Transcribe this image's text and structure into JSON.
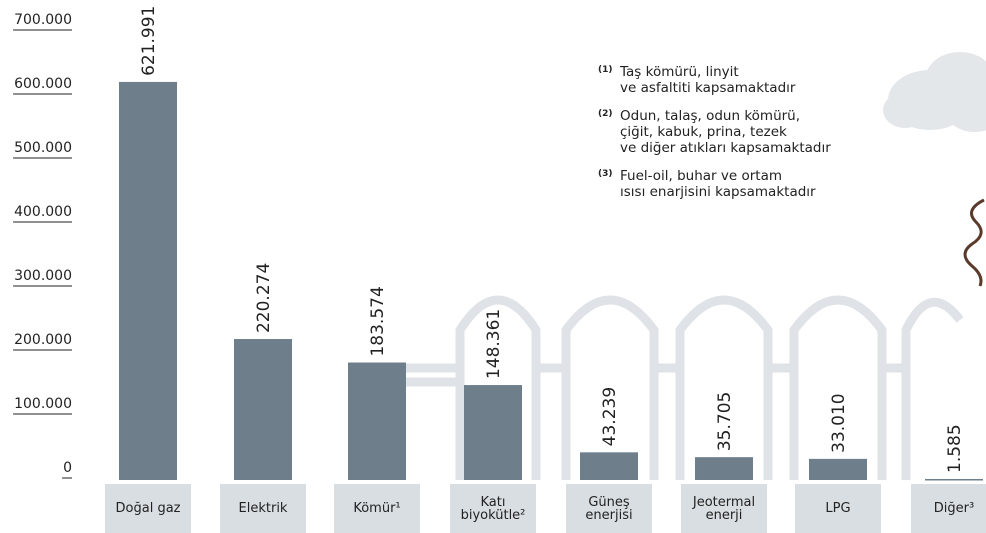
{
  "chart_data": {
    "type": "bar",
    "categories": [
      "Doğal gaz",
      "Elektrik",
      "Kömür¹",
      "Katı biyokütle²",
      "Güneş enerjisi",
      "Jeotermal enerji",
      "LPG",
      "Diğer³"
    ],
    "values": [
      621991,
      220274,
      183574,
      148361,
      43239,
      35705,
      33010,
      1585
    ],
    "value_labels": [
      "621.991",
      "220.274",
      "183.574",
      "148.361",
      "43.239",
      "35.705",
      "33.010",
      "1.585"
    ],
    "color": "#6e7f8b",
    "ylim": [
      0,
      700000
    ],
    "yticks": [
      0,
      {
        "value": 100000,
        "label": "100.000"
      },
      {
        "value": 200000,
        "label": "200.000"
      },
      {
        "value": 300000,
        "label": "300.000"
      },
      {
        "value": 400000,
        "label": "400.000"
      },
      {
        "value": 500000,
        "label": "500.000"
      },
      {
        "value": 600000,
        "label": "600.000"
      },
      {
        "value": 700000,
        "label": "700.000"
      }
    ],
    "notes": [
      {
        "marker": "(1)",
        "lines": [
          "Taş kömürü, linyit",
          "ve asfaltiti kapsamaktadır"
        ]
      },
      {
        "marker": "(2)",
        "lines": [
          "Odun, talaş, odun kömürü,",
          "çiğit, kabuk, prina, tezek",
          "ve diğer atıkları kapsamaktadır"
        ]
      },
      {
        "marker": "(3)",
        "lines": [
          "Fuel-oil, buhar ve ortam",
          "ısısı enarjisini kapsamaktadır"
        ]
      }
    ]
  }
}
